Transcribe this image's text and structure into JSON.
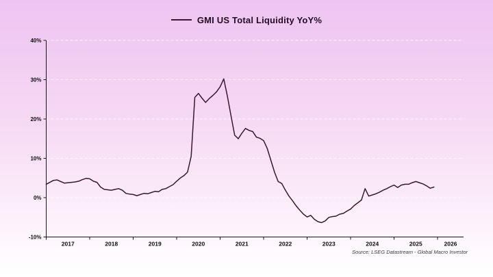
{
  "header": {
    "title": "GMI US Total Liquidity YoY%"
  },
  "source": {
    "text": "Source: LSEG Datastream - Global Macro Investor"
  },
  "colors": {
    "background_top": "#eec5f2",
    "background_bottom": "#ffffff",
    "line": "#3a162f",
    "axis": "#1b141a",
    "grid": "rgba(255,255,255,0.7)",
    "title_text": "#220c22",
    "tick_text": "#0d0d0d",
    "source_text": "#3c3c3c"
  },
  "chart_data": {
    "type": "line",
    "title": "GMI US Total Liquidity YoY%",
    "series_name": "GMI US Total Liquidity YoY%",
    "unit": "%",
    "x_start": "2017-01",
    "x_end": "2025-12",
    "x_step_months": 1,
    "values": [
      3.4,
      3.9,
      4.4,
      4.5,
      4.1,
      3.7,
      3.8,
      3.9,
      4.0,
      4.2,
      4.6,
      4.9,
      4.8,
      4.2,
      3.9,
      2.7,
      2.1,
      2.0,
      1.9,
      2.1,
      2.3,
      1.9,
      1.1,
      0.9,
      0.8,
      0.5,
      0.8,
      1.1,
      1.0,
      1.3,
      1.6,
      1.5,
      2.1,
      2.3,
      2.8,
      3.3,
      4.2,
      5.0,
      5.6,
      6.5,
      10.5,
      25.5,
      26.5,
      25.3,
      24.2,
      25.2,
      26.0,
      26.9,
      28.2,
      30.2,
      25.8,
      20.8,
      15.9,
      15.0,
      16.4,
      17.6,
      17.1,
      16.8,
      15.4,
      15.1,
      14.5,
      12.5,
      9.5,
      6.5,
      4.1,
      3.6,
      1.9,
      0.4,
      -0.8,
      -2.1,
      -3.2,
      -4.2,
      -4.9,
      -4.5,
      -5.5,
      -6.1,
      -6.35,
      -5.9,
      -5.0,
      -4.8,
      -4.7,
      -4.2,
      -4.0,
      -3.4,
      -2.9,
      -2.0,
      -1.3,
      -0.6,
      2.3,
      0.4,
      0.7,
      1.0,
      1.4,
      1.9,
      2.3,
      2.8,
      3.2,
      2.6,
      3.2,
      3.4,
      3.4,
      3.8,
      4.1,
      3.8,
      3.5,
      3.0,
      2.4,
      2.7
    ],
    "y_axis": {
      "min": -10,
      "max": 40,
      "tick_step": 10,
      "tick_values": [
        40,
        30,
        20,
        10,
        0,
        -10
      ],
      "tick_labels": [
        "40%",
        "30%",
        "20%",
        "10%",
        "0%",
        "-10%"
      ]
    },
    "x_axis": {
      "tick_years": [
        2017,
        2018,
        2019,
        2020,
        2021,
        2022,
        2023,
        2024,
        2025,
        2026
      ],
      "year_labels": [
        "2017",
        "2018",
        "2019",
        "2020",
        "2021",
        "2022",
        "2023",
        "2024",
        "2025",
        "2026"
      ]
    },
    "grid": "horizontal-dashed",
    "legend_position": "top-center"
  }
}
